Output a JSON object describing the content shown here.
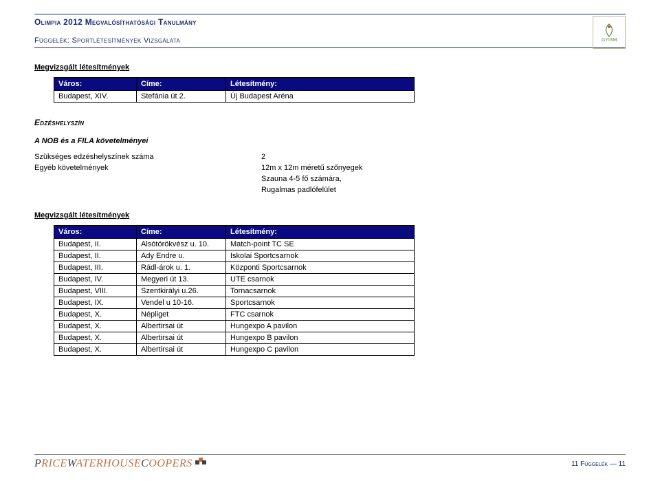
{
  "header": {
    "title": "Olimpia 2012 Megvalósíthatósági Tanulmány",
    "subtitle": "Függelék: Sportlétesítmények Vizsgálata",
    "logo_text": "GYISM"
  },
  "section1": {
    "heading": "Megvizsgált létesítmények",
    "th1": "Város:",
    "th2": "Címe:",
    "th3": "Létesítmény:",
    "rows": [
      [
        "Budapest, XIV.",
        "Stefánia út 2.",
        "Új Budapest Aréna"
      ]
    ]
  },
  "edzes": {
    "heading": "Edzéshelyszín",
    "sub": "A NOB és a FILA követelményei",
    "kv": [
      {
        "k": "Szükséges edzéshelyszínek száma",
        "v": "2"
      },
      {
        "k": "Egyéb követelmények",
        "v": "12m x 12m méretű szőnyegek"
      },
      {
        "k": "",
        "v": "Szauna 4-5 fő számára,"
      },
      {
        "k": "",
        "v": "Rugalmas padlófelület"
      }
    ]
  },
  "section2": {
    "heading": "Megvizsgált létesítmények",
    "th1": "Város:",
    "th2": "Címe:",
    "th3": "Létesítmény:",
    "rows": [
      [
        "Budapest, II.",
        "Alsótörökvész u. 10.",
        "Match-point TC SE"
      ],
      [
        "Budapest, II.",
        "Ady Endre u.",
        "Iskolai Sportcsarnok"
      ],
      [
        "Budapest, III.",
        "Rádl-árok u. 1.",
        "Központi Sportcsarnok"
      ],
      [
        "Budapest, IV.",
        "Megyeri út 13.",
        "UTE csarnok"
      ],
      [
        "Budapest, VIII.",
        "Szentkirályi u.26.",
        "Tornacsarnok"
      ],
      [
        "Budapest, IX.",
        "Vendel u 10-16.",
        "Sportcsarnok"
      ],
      [
        "Budapest, X.",
        "Népliget",
        "FTC csarnok"
      ],
      [
        "Budapest, X.",
        "Albertirsai út",
        "Hungexpo A pavilon"
      ],
      [
        "Budapest, X.",
        "Albertirsai út",
        "Hungexpo B pavilon"
      ],
      [
        "Budapest, X.",
        "Albertirsai út",
        "Hungexpo C pavilon"
      ]
    ]
  },
  "footer": {
    "brand1": "PricewaterhouseCoopers",
    "pagelabel": "11 Függelék — 11"
  },
  "colors": {
    "header_rule": "#1a2a6c",
    "table_header_bg": "#0a0a80",
    "table_header_fg": "#ffffff",
    "cell_border": "#000000",
    "pwc_dark": "#404040",
    "pwc_light": "#c0703c"
  }
}
